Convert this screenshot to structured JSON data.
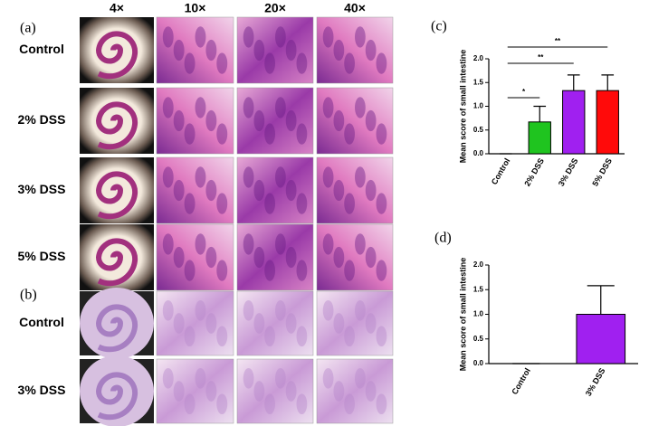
{
  "panel_a": {
    "label": "(a)",
    "columns": [
      "4×",
      "10×",
      "20×",
      "40×"
    ],
    "rows": [
      "Control",
      "2% DSS",
      "3% DSS",
      "5% DSS"
    ]
  },
  "panel_b": {
    "label": "(b)",
    "rows": [
      "Control",
      "3% DSS"
    ]
  },
  "chart_data": [
    {
      "type": "bar",
      "label": "(c)",
      "y_label": "Mean score of small intestine",
      "categories": [
        "Control",
        "2% DSS",
        "3% DSS",
        "5% DSS"
      ],
      "values": [
        0,
        0.67,
        1.33,
        1.33
      ],
      "errors": [
        0,
        0.33,
        0.33,
        0.33
      ],
      "colors": [
        "#ffffff",
        "#1fc41f",
        "#a020f0",
        "#ff0a0a"
      ],
      "ylim": [
        0,
        2.0
      ],
      "yticks": [
        {
          "value": 0,
          "label": "0.0"
        },
        {
          "value": 0.5,
          "label": "0.5"
        },
        {
          "value": 1.0,
          "label": "1.0"
        },
        {
          "value": 1.5,
          "label": "1.5"
        },
        {
          "value": 2.0,
          "label": "2.0"
        }
      ],
      "annotations": [
        "*",
        "**",
        "**"
      ]
    },
    {
      "type": "bar",
      "label": "(d)",
      "y_label": "Mean score of small intestine",
      "categories": [
        "Control",
        "3% DSS"
      ],
      "values": [
        0,
        1.0
      ],
      "errors": [
        0,
        0.58
      ],
      "colors": [
        "#ffffff",
        "#a020f0"
      ],
      "ylim": [
        0,
        2.0
      ],
      "yticks": [
        {
          "value": 0,
          "label": "0.0"
        },
        {
          "value": 0.5,
          "label": "0.5"
        },
        {
          "value": 1.0,
          "label": "1.0"
        },
        {
          "value": 1.5,
          "label": "1.5"
        },
        {
          "value": 2.0,
          "label": "2.0"
        }
      ]
    }
  ]
}
